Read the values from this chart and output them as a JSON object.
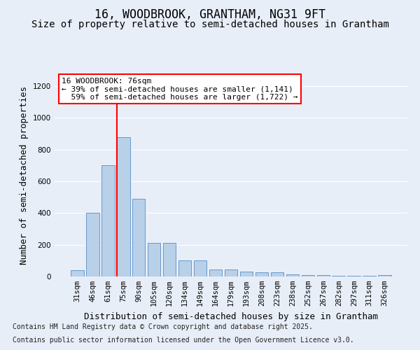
{
  "title": "16, WOODBROOK, GRANTHAM, NG31 9FT",
  "subtitle": "Size of property relative to semi-detached houses in Grantham",
  "xlabel": "Distribution of semi-detached houses by size in Grantham",
  "ylabel": "Number of semi-detached properties",
  "bins": [
    "31sqm",
    "46sqm",
    "61sqm",
    "75sqm",
    "90sqm",
    "105sqm",
    "120sqm",
    "134sqm",
    "149sqm",
    "164sqm",
    "179sqm",
    "193sqm",
    "208sqm",
    "223sqm",
    "238sqm",
    "252sqm",
    "267sqm",
    "282sqm",
    "297sqm",
    "311sqm",
    "326sqm"
  ],
  "values": [
    40,
    400,
    700,
    880,
    490,
    210,
    210,
    100,
    100,
    45,
    45,
    30,
    25,
    25,
    15,
    10,
    10,
    5,
    5,
    5,
    10
  ],
  "bar_color": "#b8d0e8",
  "bar_edge_color": "#6699cc",
  "pct_smaller": 39,
  "pct_larger": 59,
  "count_smaller": 1141,
  "count_larger": 1722,
  "vline_color": "red",
  "ylim": [
    0,
    1280
  ],
  "yticks": [
    0,
    200,
    400,
    600,
    800,
    1000,
    1200
  ],
  "background_color": "#e8eef8",
  "plot_bg_color": "#e8eef8",
  "footer_line1": "Contains HM Land Registry data © Crown copyright and database right 2025.",
  "footer_line2": "Contains public sector information licensed under the Open Government Licence v3.0.",
  "title_fontsize": 12,
  "subtitle_fontsize": 10,
  "tick_fontsize": 7.5,
  "label_fontsize": 9,
  "footer_fontsize": 7,
  "annot_fontsize": 8
}
